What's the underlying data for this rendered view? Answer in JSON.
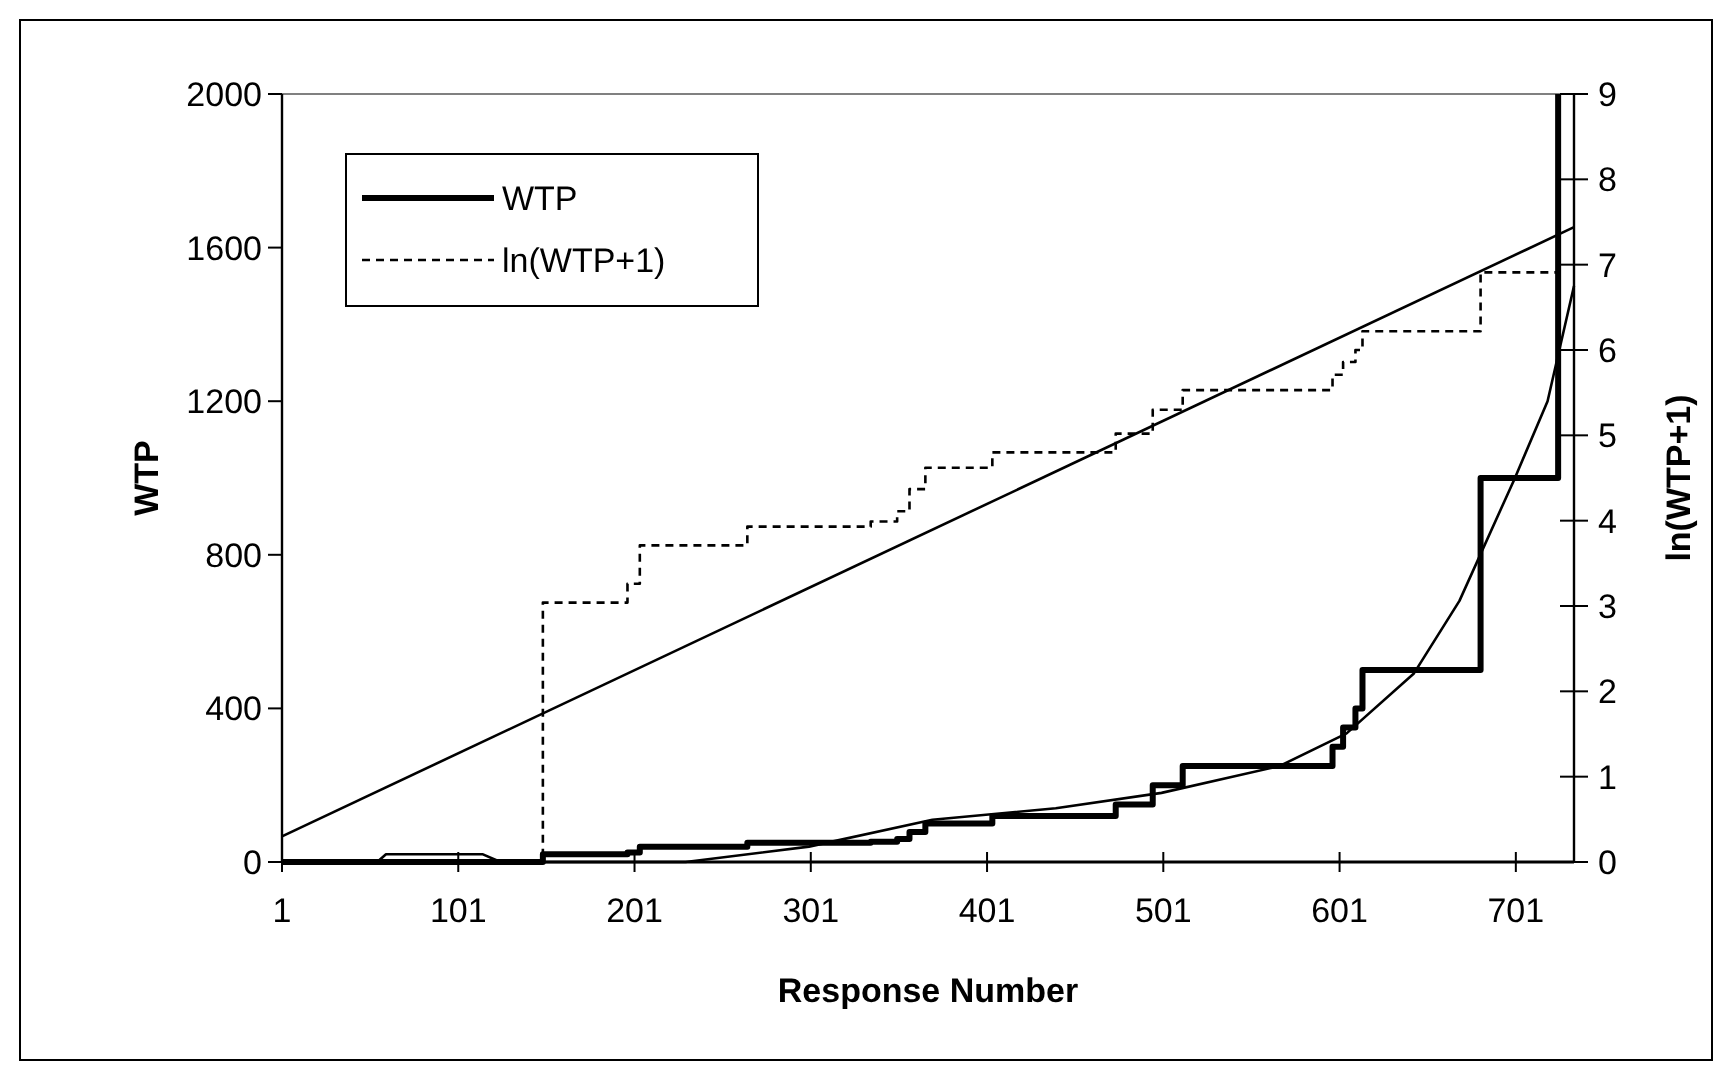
{
  "chart_data": {
    "type": "line",
    "xlabel": "Response Number",
    "ylabel": "WTP",
    "y2label": "ln(WTP+1)",
    "xlim": [
      1,
      734
    ],
    "xticks": [
      1,
      101,
      201,
      301,
      401,
      501,
      601,
      701
    ],
    "ylim": [
      0,
      2000
    ],
    "yticks": [
      0,
      400,
      800,
      1200,
      1600,
      2000
    ],
    "y2lim": [
      0,
      9
    ],
    "y2ticks": [
      0,
      1,
      2,
      3,
      4,
      5,
      6,
      7,
      8,
      9
    ],
    "grid": false,
    "legend": "top left",
    "marker": "none",
    "series": [
      {
        "name": "WTP",
        "type": "step",
        "color": "#000000",
        "line_style": "solid",
        "x": [
          1,
          149,
          197,
          204,
          265,
          335,
          350,
          357,
          366,
          404,
          474,
          495,
          512,
          597,
          603,
          610,
          614,
          681,
          725
        ],
        "values": [
          0,
          20,
          25,
          40,
          50,
          53,
          60,
          78,
          100,
          120,
          150,
          200,
          250,
          300,
          350,
          400,
          500,
          1000,
          2000
        ]
      },
      {
        "name": "ln(WTP+1)",
        "type": "step",
        "color": "#000000",
        "line_style": "dashed",
        "axis": "y2",
        "x": [
          1,
          149,
          197,
          204,
          265,
          335,
          350,
          357,
          366,
          404,
          474,
          495,
          512,
          597,
          603,
          610,
          614,
          681,
          725
        ],
        "values": [
          0,
          3.04,
          3.26,
          3.71,
          3.93,
          3.99,
          4.11,
          4.37,
          4.62,
          4.8,
          5.02,
          5.3,
          5.53,
          5.71,
          5.86,
          6.0,
          6.22,
          6.91,
          7.6
        ]
      },
      {
        "color": "#000000",
        "line_style": "solid",
        "axis": "y2",
        "x": [
          1,
          734
        ],
        "values": [
          0.3,
          7.44
        ]
      },
      {
        "color": "#000000",
        "line_style": "solid",
        "x": [
          1,
          55,
          60,
          115,
          125,
          230,
          300,
          370,
          440,
          500,
          567,
          605,
          643,
          669,
          700,
          719,
          734
        ],
        "values": [
          0,
          0,
          20,
          20,
          0,
          0,
          40,
          110,
          140,
          180,
          250,
          335,
          490,
          680,
          995,
          1200,
          1500
        ]
      }
    ]
  }
}
